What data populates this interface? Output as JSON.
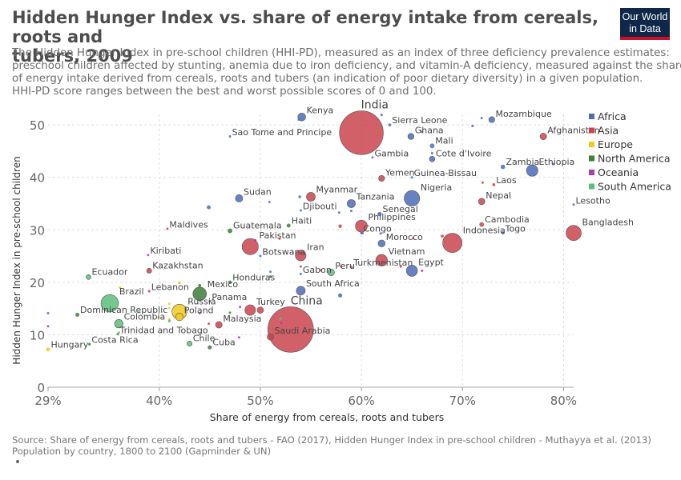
{
  "header": {
    "title_line1": "Hidden Hunger Index vs. share of energy intake from cereals, roots and",
    "title_line2": "tubers, 2009",
    "subtitle_lines": [
      "The Hidden Hunger Index in pre-school children (HHI-PD), measured as an index of three deficiency prevalence estimates:",
      "preschool children affected by stunting, anemia due to iron deficiency, and vitamin-A deficiency, measured against the share",
      "of energy intake derived from cereals, roots and tubers (an indication of poor dietary diversity) in a given population.",
      "HHI-PD score ranges between the best and worst possible scores of 0 and 100."
    ]
  },
  "logo": {
    "line1": "Our World",
    "line2": "in Data"
  },
  "footer": {
    "source_line1": "Source: Share of energy from cereals, roots and tubers - FAO (2017), Hidden Hunger Index in pre-school children - Muthayya et al. (2013)",
    "source_line2": "Population by country, 1800 to 2100 (Gapminder & UN)"
  },
  "chart_data": {
    "type": "scatter",
    "xlabel": "Share of energy from cereals, roots and tubers",
    "ylabel": "Hidden Hunger Index in pre-school children",
    "xlim": [
      29,
      81
    ],
    "ylim": [
      0,
      52
    ],
    "xticks": [
      29,
      40,
      50,
      60,
      70,
      80
    ],
    "xtick_labels": [
      "29%",
      "40%",
      "50%",
      "60%",
      "70%",
      "80%"
    ],
    "yticks": [
      0,
      10,
      20,
      30,
      40,
      50
    ],
    "ytick_labels": [
      "0",
      "10",
      "20",
      "30",
      "40",
      "50"
    ],
    "grid": true,
    "legend_position": "right",
    "legend": [
      {
        "name": "Africa",
        "color": "#4c6cb8"
      },
      {
        "name": "Asia",
        "color": "#c9444f"
      },
      {
        "name": "Europe",
        "color": "#f2c91d"
      },
      {
        "name": "North America",
        "color": "#3e7d3a"
      },
      {
        "name": "Oceania",
        "color": "#a73eb3"
      },
      {
        "name": "South America",
        "color": "#5dbd7a"
      }
    ],
    "points": [
      {
        "label": "India",
        "continent": "Asia",
        "x": 60,
        "y": 48.5,
        "pop": 1230
      },
      {
        "label": "China",
        "continent": "Asia",
        "x": 53,
        "y": 11,
        "pop": 1330
      },
      {
        "label": "Kenya",
        "continent": "Africa",
        "x": 54.1,
        "y": 51.5,
        "pop": 40
      },
      {
        "label": "Sierra Leone",
        "continent": "Africa",
        "x": 62.8,
        "y": 50,
        "pop": 6
      },
      {
        "label": "Mozambique",
        "continent": "Africa",
        "x": 72.9,
        "y": 51,
        "pop": 23
      },
      {
        "label": "Afghanistan",
        "continent": "Asia",
        "x": 78,
        "y": 47.8,
        "pop": 28
      },
      {
        "label": "Ghana",
        "continent": "Africa",
        "x": 64.9,
        "y": 47.8,
        "pop": 24
      },
      {
        "label": "Mali",
        "continent": "Africa",
        "x": 67,
        "y": 46,
        "pop": 14
      },
      {
        "label": "Cote d'Ivoire",
        "continent": "Africa",
        "x": 67,
        "y": 43.5,
        "pop": 20
      },
      {
        "label": "Gambia",
        "continent": "Africa",
        "x": 61.1,
        "y": 43.8,
        "pop": 2
      },
      {
        "label": "Sao Tome and Principe",
        "continent": "Africa",
        "x": 47,
        "y": 47.8,
        "pop": 1
      },
      {
        "label": "Zambia",
        "continent": "Africa",
        "x": 74,
        "y": 42,
        "pop": 13
      },
      {
        "label": "Ethiopia",
        "continent": "Africa",
        "x": 76.9,
        "y": 41.3,
        "pop": 85
      },
      {
        "label": "Yemen",
        "continent": "Asia",
        "x": 62,
        "y": 39.8,
        "pop": 23
      },
      {
        "label": "Guinea-Bissau",
        "continent": "Africa",
        "x": 65,
        "y": 40,
        "pop": 2
      },
      {
        "label": "Laos",
        "continent": "Asia",
        "x": 73.1,
        "y": 38.6,
        "pop": 6
      },
      {
        "label": "Sudan",
        "continent": "Africa",
        "x": 47.9,
        "y": 36,
        "pop": 35
      },
      {
        "label": "Myanmar",
        "continent": "Asia",
        "x": 55,
        "y": 36.3,
        "pop": 50
      },
      {
        "label": "Nigeria",
        "continent": "Africa",
        "x": 65,
        "y": 36,
        "pop": 155
      },
      {
        "label": "Tanzania",
        "continent": "Africa",
        "x": 59,
        "y": 35,
        "pop": 43
      },
      {
        "label": "Nepal",
        "continent": "Asia",
        "x": 71.9,
        "y": 35.4,
        "pop": 27
      },
      {
        "label": "Djibouti",
        "continent": "Africa",
        "x": 54,
        "y": 33.7,
        "pop": 1
      },
      {
        "label": "Senegal",
        "continent": "Africa",
        "x": 61.8,
        "y": 33,
        "pop": 12
      },
      {
        "label": "Lesotho",
        "continent": "Africa",
        "x": 81,
        "y": 34.8,
        "pop": 2
      },
      {
        "label": "Haiti",
        "continent": "North America",
        "x": 52.8,
        "y": 30.8,
        "pop": 10
      },
      {
        "label": "Philippines",
        "continent": "Asia",
        "x": 60,
        "y": 30.7,
        "pop": 92
      },
      {
        "label": "Congo",
        "continent": "Africa",
        "x": 60,
        "y": 29.4,
        "pop": 4
      },
      {
        "label": "Cambodia",
        "continent": "Asia",
        "x": 71.9,
        "y": 31,
        "pop": 14
      },
      {
        "label": "Togo",
        "continent": "Africa",
        "x": 74,
        "y": 29.4,
        "pop": 6
      },
      {
        "label": "Bangladesh",
        "continent": "Asia",
        "x": 81,
        "y": 29.4,
        "pop": 148
      },
      {
        "label": "Maldives",
        "continent": "Asia",
        "x": 40.8,
        "y": 30.2,
        "pop": 0.3
      },
      {
        "label": "Guatemala",
        "continent": "North America",
        "x": 47,
        "y": 29.8,
        "pop": 14
      },
      {
        "label": "Pakistan",
        "continent": "Asia",
        "x": 49,
        "y": 26.8,
        "pop": 170
      },
      {
        "label": "Morocco",
        "continent": "Africa",
        "x": 62,
        "y": 27.4,
        "pop": 32
      },
      {
        "label": "Indonesia",
        "continent": "Asia",
        "x": 69,
        "y": 27.5,
        "pop": 240
      },
      {
        "label": "Botswana",
        "continent": "Africa",
        "x": 50,
        "y": 25,
        "pop": 2
      },
      {
        "label": "Iran",
        "continent": "Asia",
        "x": 54,
        "y": 25.1,
        "pop": 74
      },
      {
        "label": "Kiribati",
        "continent": "Oceania",
        "x": 38.9,
        "y": 25.2,
        "pop": 0.1
      },
      {
        "label": "Vietnam",
        "continent": "Asia",
        "x": 62,
        "y": 24.2,
        "pop": 87
      },
      {
        "label": "Turkmenistan",
        "continent": "Asia",
        "x": 59,
        "y": 22.9,
        "pop": 5
      },
      {
        "label": "Egypt",
        "continent": "Africa",
        "x": 65,
        "y": 22.2,
        "pop": 80
      },
      {
        "label": "Peru",
        "continent": "South America",
        "x": 57,
        "y": 21.9,
        "pop": 29
      },
      {
        "label": "Gabon",
        "continent": "Africa",
        "x": 54,
        "y": 21.6,
        "pop": 1.5
      },
      {
        "label": "Kazakhstan",
        "continent": "Asia",
        "x": 39,
        "y": 22.2,
        "pop": 16
      },
      {
        "label": "Ecuador",
        "continent": "South America",
        "x": 33,
        "y": 21,
        "pop": 15
      },
      {
        "label": "Honduras",
        "continent": "North America",
        "x": 47,
        "y": 20,
        "pop": 8
      },
      {
        "label": "Lebanon",
        "continent": "Asia",
        "x": 39,
        "y": 18.3,
        "pop": 4
      },
      {
        "label": "Mexico",
        "continent": "North America",
        "x": 44,
        "y": 17.8,
        "pop": 118
      },
      {
        "label": "South Africa",
        "continent": "Africa",
        "x": 54,
        "y": 18.4,
        "pop": 51
      },
      {
        "label": "Panama",
        "continent": "North America",
        "x": 45,
        "y": 16.4,
        "pop": 3.5
      },
      {
        "label": "Brazil",
        "continent": "South America",
        "x": 35.1,
        "y": 16,
        "pop": 195
      },
      {
        "label": "Russia",
        "continent": "Europe",
        "x": 42,
        "y": 14.4,
        "pop": 142
      },
      {
        "label": "Turkey",
        "continent": "Asia",
        "x": 49,
        "y": 14.7,
        "pop": 72
      },
      {
        "label": "Dominican Republic",
        "continent": "North America",
        "x": 31.9,
        "y": 13.8,
        "pop": 10
      },
      {
        "label": "Poland",
        "continent": "Europe",
        "x": 42,
        "y": 13.4,
        "pop": 38
      },
      {
        "label": "Colombia",
        "continent": "South America",
        "x": 36,
        "y": 12.1,
        "pop": 46
      },
      {
        "label": "Malaysia",
        "continent": "Asia",
        "x": 45.9,
        "y": 11.9,
        "pop": 28
      },
      {
        "label": "Trinidad and Tobago",
        "continent": "North America",
        "x": 35.9,
        "y": 10.1,
        "pop": 1.3
      },
      {
        "label": "Saudi Arabia",
        "continent": "Asia",
        "x": 51,
        "y": 9.6,
        "pop": 27
      },
      {
        "label": "Costa Rica",
        "continent": "North America",
        "x": 33.1,
        "y": 8.2,
        "pop": 4.6
      },
      {
        "label": "Chile",
        "continent": "South America",
        "x": 43,
        "y": 8.3,
        "pop": 17
      },
      {
        "label": "Cuba",
        "continent": "North America",
        "x": 45,
        "y": 7.6,
        "pop": 11
      },
      {
        "label": "Hungary",
        "continent": "Europe",
        "x": 29,
        "y": 7.2,
        "pop": 10
      },
      {
        "label": "",
        "continent": "Africa",
        "x": 53.8,
        "y": 51,
        "pop": 2
      },
      {
        "label": "",
        "continent": "Africa",
        "x": 62,
        "y": 51.9,
        "pop": 4
      },
      {
        "label": "",
        "continent": "Africa",
        "x": 71.9,
        "y": 51.3,
        "pop": 3
      },
      {
        "label": "",
        "continent": "Africa",
        "x": 71,
        "y": 49.8,
        "pop": 4
      },
      {
        "label": "",
        "continent": "Africa",
        "x": 66,
        "y": 48.7,
        "pop": 3
      },
      {
        "label": "",
        "continent": "Africa",
        "x": 67,
        "y": 44.6,
        "pop": 3
      },
      {
        "label": "",
        "continent": "Africa",
        "x": 79,
        "y": 42.5,
        "pop": 3
      },
      {
        "label": "",
        "continent": "Asia",
        "x": 72,
        "y": 39,
        "pop": 2
      },
      {
        "label": "",
        "continent": "Africa",
        "x": 44.9,
        "y": 34.3,
        "pop": 10
      },
      {
        "label": "",
        "continent": "Africa",
        "x": 50.9,
        "y": 35.3,
        "pop": 1
      },
      {
        "label": "",
        "continent": "Africa",
        "x": 53.9,
        "y": 36.3,
        "pop": 5
      },
      {
        "label": "",
        "continent": "Africa",
        "x": 57.8,
        "y": 33.3,
        "pop": 1
      },
      {
        "label": "",
        "continent": "Africa",
        "x": 59,
        "y": 33.6,
        "pop": 2
      },
      {
        "label": "",
        "continent": "Asia",
        "x": 57.9,
        "y": 30.7,
        "pop": 8
      },
      {
        "label": "",
        "continent": "Africa",
        "x": 60.1,
        "y": 29.4,
        "pop": 5
      },
      {
        "label": "",
        "continent": "Asia",
        "x": 65.1,
        "y": 28.4,
        "pop": 1
      },
      {
        "label": "",
        "continent": "Asia",
        "x": 68,
        "y": 28.8,
        "pop": 6
      },
      {
        "label": "",
        "continent": "Africa",
        "x": 61.9,
        "y": 29.3,
        "pop": 1
      },
      {
        "label": "",
        "continent": "Asia",
        "x": 51.9,
        "y": 28.3,
        "pop": 1
      },
      {
        "label": "",
        "continent": "Oceania",
        "x": 49.5,
        "y": 28,
        "pop": 0.1
      },
      {
        "label": "",
        "continent": "Asia",
        "x": 54,
        "y": 23,
        "pop": 3
      },
      {
        "label": "",
        "continent": "Asia",
        "x": 56,
        "y": 22.3,
        "pop": 3
      },
      {
        "label": "",
        "continent": "Asia",
        "x": 58,
        "y": 23,
        "pop": 2
      },
      {
        "label": "",
        "continent": "Asia",
        "x": 63.9,
        "y": 23,
        "pop": 4
      },
      {
        "label": "",
        "continent": "Asia",
        "x": 66,
        "y": 22.2,
        "pop": 4
      },
      {
        "label": "",
        "continent": "North America",
        "x": 51,
        "y": 21.1,
        "pop": 1
      },
      {
        "label": "",
        "continent": "Africa",
        "x": 51,
        "y": 22,
        "pop": 2
      },
      {
        "label": "",
        "continent": "Europe",
        "x": 36.1,
        "y": 19,
        "pop": 2
      },
      {
        "label": "",
        "continent": "Europe",
        "x": 42,
        "y": 19.9,
        "pop": 5
      },
      {
        "label": "",
        "continent": "North America",
        "x": 44,
        "y": 19.4,
        "pop": 6
      },
      {
        "label": "",
        "continent": "Africa",
        "x": 57.9,
        "y": 17.5,
        "pop": 11
      },
      {
        "label": "",
        "continent": "Europe",
        "x": 41,
        "y": 15.9,
        "pop": 3
      },
      {
        "label": "",
        "continent": "Europe",
        "x": 41,
        "y": 15.1,
        "pop": 2
      },
      {
        "label": "",
        "continent": "Oceania",
        "x": 44,
        "y": 14.1,
        "pop": 0.3
      },
      {
        "label": "",
        "continent": "Oceania",
        "x": 48,
        "y": 15.3,
        "pop": 0.3
      },
      {
        "label": "",
        "continent": "South America",
        "x": 38,
        "y": 14.3,
        "pop": 1
      },
      {
        "label": "",
        "continent": "Asia",
        "x": 50,
        "y": 14.7,
        "pop": 26
      },
      {
        "label": "",
        "continent": "Oceania",
        "x": 29,
        "y": 14.1,
        "pop": 0.3
      },
      {
        "label": "",
        "continent": "Europe",
        "x": 41,
        "y": 12.9,
        "pop": 5
      },
      {
        "label": "",
        "continent": "North America",
        "x": 47,
        "y": 14.2,
        "pop": 1
      },
      {
        "label": "",
        "continent": "Europe",
        "x": 39.9,
        "y": 13.3,
        "pop": 3
      },
      {
        "label": "",
        "continent": "South America",
        "x": 41,
        "y": 12.6,
        "pop": 5
      },
      {
        "label": "",
        "continent": "Asia",
        "x": 44.9,
        "y": 12.1,
        "pop": 2
      },
      {
        "label": "",
        "continent": "Oceania",
        "x": 29,
        "y": 11.6,
        "pop": 0.3
      },
      {
        "label": "",
        "continent": "South America",
        "x": 36,
        "y": 10.4,
        "pop": 1
      },
      {
        "label": "",
        "continent": "Oceania",
        "x": 47.9,
        "y": 9.5,
        "pop": 0.3
      },
      {
        "label": "",
        "continent": "Oceania",
        "x": 52.1,
        "y": 12.2,
        "pop": 0.3
      },
      {
        "label": "",
        "continent": "South America",
        "x": 52,
        "y": 13.1,
        "pop": 0.6
      }
    ]
  }
}
